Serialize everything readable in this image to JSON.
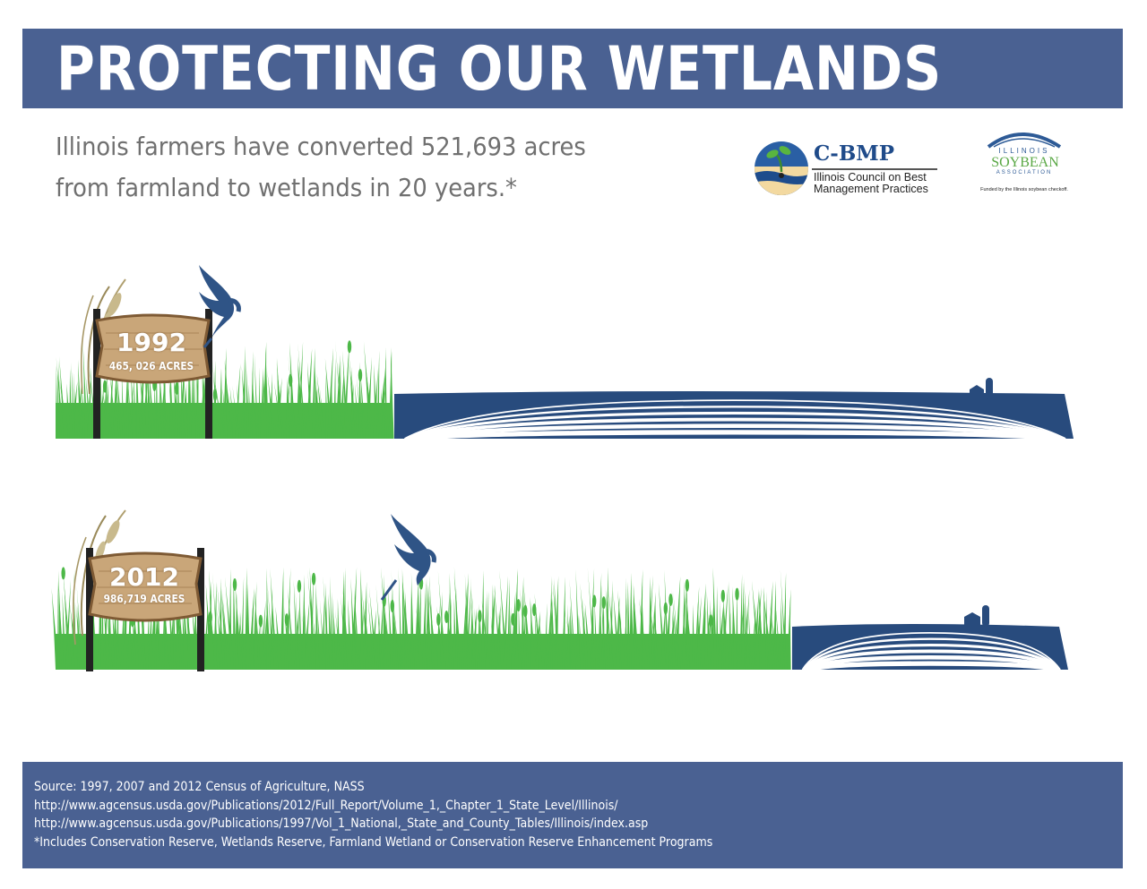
{
  "header": {
    "title": "PROTECTING OUR WETLANDS"
  },
  "subtitle": {
    "line1": "Illinois farmers have converted 521,693 acres",
    "line2": "from farmland to wetlands in 20 years.*"
  },
  "logos": {
    "cbmp": {
      "name": "C-BMP",
      "line1": "Illinois Council on Best",
      "line2": "Management Practices"
    },
    "soybean": {
      "top": "ILLINOIS",
      "main": "SOYBEAN",
      "sub": "ASSOCIATION",
      "funded": "Funded by the Illinois soybean checkoff."
    }
  },
  "panels": [
    {
      "year": "1992",
      "acres": "465, 026 ACRES",
      "wetland_share": 0.33
    },
    {
      "year": "2012",
      "acres": "986,719 ACRES",
      "wetland_share": 0.72
    }
  ],
  "footer": {
    "line1": "Source: 1997, 2007 and 2012 Census of Agriculture, NASS",
    "line2": "http://www.agcensus.usda.gov/Publications/2012/Full_Report/Volume_1,_Chapter_1_State_Level/Illinois/",
    "line3": "http://www.agcensus.usda.gov/Publications/1997/Vol_1_National,_State_and_County_Tables/Illinois/index.asp",
    "line4": "*Includes Conservation Reserve, Wetlands Reserve, Farmland Wetland or Conservation Reserve Enhancement Programs"
  },
  "colors": {
    "banner": "#4a6192",
    "grass": "#4db848",
    "field": "#284b7d",
    "heron": "#2f5486",
    "sign": "#c9a679",
    "subtitle_text": "#707070"
  },
  "icons": [
    "heron-icon",
    "cattail-reeds-icon",
    "barn-silo-icon",
    "sprout-icon"
  ]
}
